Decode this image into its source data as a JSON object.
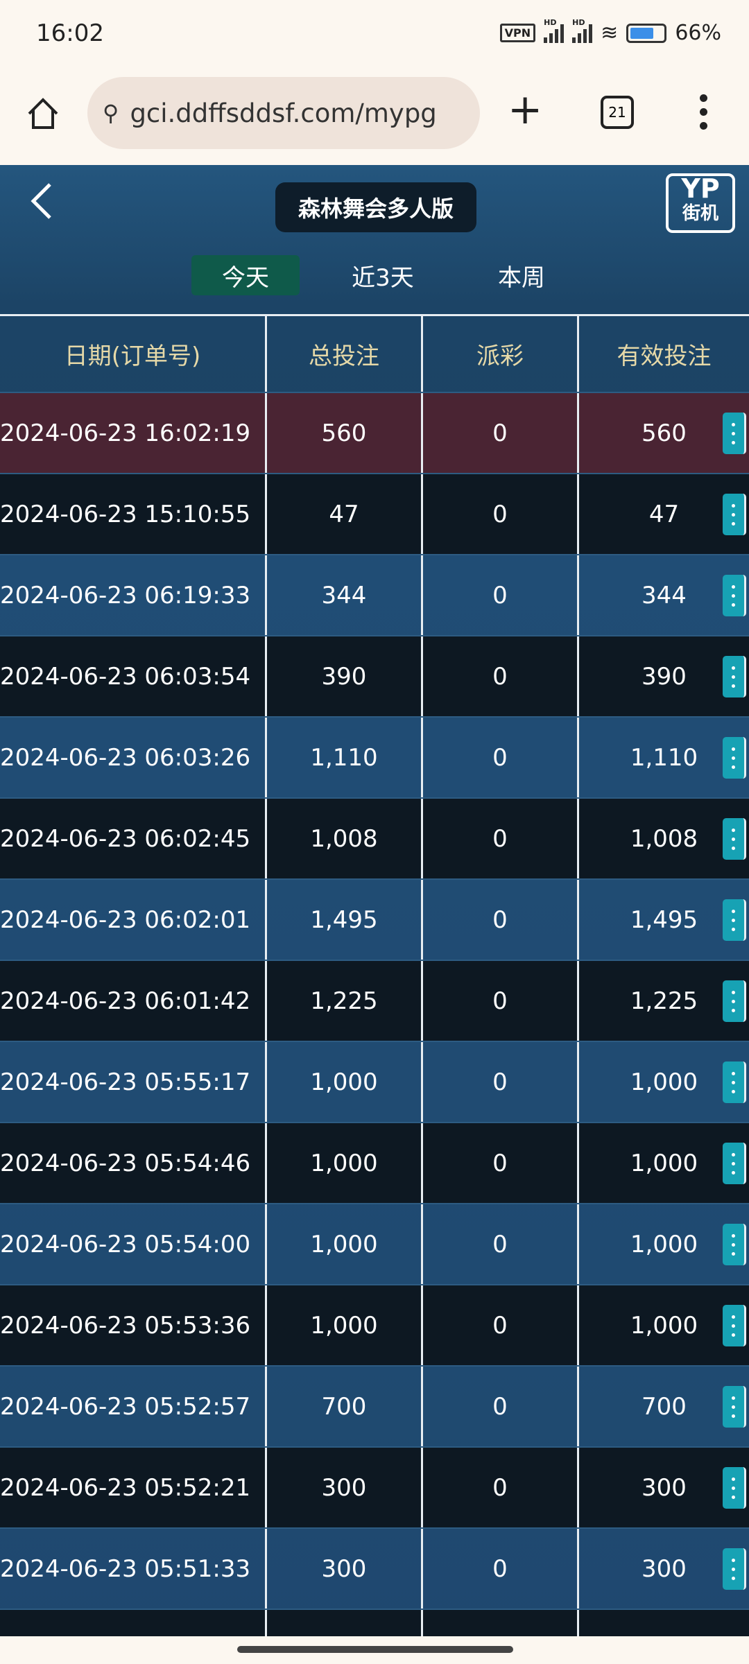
{
  "status": {
    "time": "16:02",
    "vpn": "VPN",
    "battery_percent": 66,
    "battery_label": "66%"
  },
  "browser": {
    "url": "gci.ddffsddsf.com/mypg",
    "tab_count": "21"
  },
  "game": {
    "title": "森林舞会多人版",
    "logo_top": "YP",
    "logo_bottom": "街机",
    "filters": [
      {
        "label": "今天",
        "active": true
      },
      {
        "label": "近3天",
        "active": false
      },
      {
        "label": "本周",
        "active": false
      }
    ]
  },
  "table": {
    "headers": [
      "日期(订单号)",
      "总投注",
      "派彩",
      "有效投注"
    ],
    "rows": [
      [
        "2024-06-23 16:02:19",
        "560",
        "0",
        "560"
      ],
      [
        "2024-06-23 15:10:55",
        "47",
        "0",
        "47"
      ],
      [
        "2024-06-23 06:19:33",
        "344",
        "0",
        "344"
      ],
      [
        "2024-06-23 06:03:54",
        "390",
        "0",
        "390"
      ],
      [
        "2024-06-23 06:03:26",
        "1,110",
        "0",
        "1,110"
      ],
      [
        "2024-06-23 06:02:45",
        "1,008",
        "0",
        "1,008"
      ],
      [
        "2024-06-23 06:02:01",
        "1,495",
        "0",
        "1,495"
      ],
      [
        "2024-06-23 06:01:42",
        "1,225",
        "0",
        "1,225"
      ],
      [
        "2024-06-23 05:55:17",
        "1,000",
        "0",
        "1,000"
      ],
      [
        "2024-06-23 05:54:46",
        "1,000",
        "0",
        "1,000"
      ],
      [
        "2024-06-23 05:54:00",
        "1,000",
        "0",
        "1,000"
      ],
      [
        "2024-06-23 05:53:36",
        "1,000",
        "0",
        "1,000"
      ],
      [
        "2024-06-23 05:52:57",
        "700",
        "0",
        "700"
      ],
      [
        "2024-06-23 05:52:21",
        "300",
        "0",
        "300"
      ],
      [
        "2024-06-23 05:51:33",
        "300",
        "0",
        "300"
      ]
    ]
  }
}
